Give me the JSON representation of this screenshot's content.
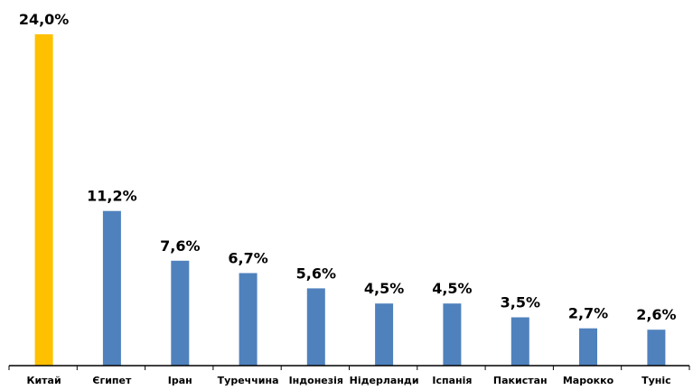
{
  "chart_data": {
    "type": "bar",
    "title": "",
    "xlabel": "",
    "ylabel": "",
    "categories": [
      "Китай",
      "Єгипет",
      "Іран",
      "Туреччина",
      "Індонезія",
      "Нідерланди",
      "Іспанія",
      "Пакистан",
      "Марокко",
      "Туніс"
    ],
    "values": [
      24.0,
      11.2,
      7.6,
      6.7,
      5.6,
      4.5,
      4.5,
      3.5,
      2.7,
      2.6
    ],
    "data_labels": [
      "24,0%",
      "11,2%",
      "7,6%",
      "6,7%",
      "5,6%",
      "4,5%",
      "4,5%",
      "3,5%",
      "2,7%",
      "2,6%"
    ],
    "ylim": [
      0,
      24.0
    ],
    "grid": false,
    "legend": "none",
    "colors": {
      "highlight": "#FFC000",
      "default": "#4F81BD",
      "axis": "#000000"
    },
    "highlight_index": 0
  }
}
